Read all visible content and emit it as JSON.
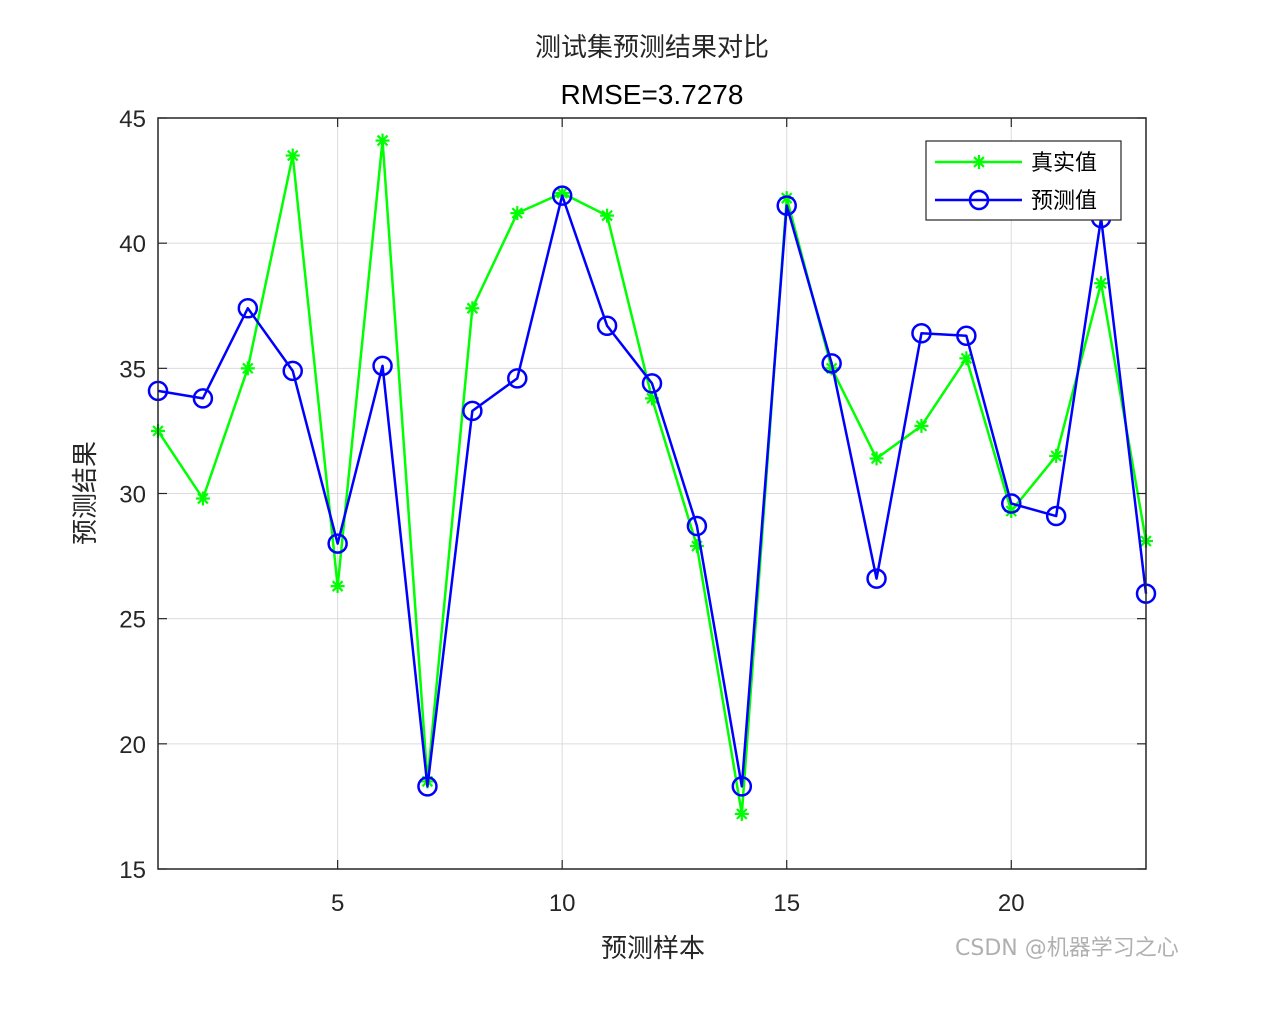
{
  "chart_data": {
    "type": "line",
    "title": "测试集预测结果对比",
    "subtitle": "RMSE=3.7278",
    "xlabel": "预测样本",
    "ylabel": "预测结果",
    "xlim": [
      1,
      23
    ],
    "ylim": [
      15,
      45
    ],
    "xticks": [
      5,
      10,
      15,
      20
    ],
    "yticks": [
      15,
      20,
      25,
      30,
      35,
      40,
      45
    ],
    "grid": true,
    "legend_position": "top-right",
    "x": [
      1,
      2,
      3,
      4,
      5,
      6,
      7,
      8,
      9,
      10,
      11,
      12,
      13,
      14,
      15,
      16,
      17,
      18,
      19,
      20,
      21,
      22,
      23
    ],
    "series": [
      {
        "name": "真实值",
        "color": "#00ff00",
        "marker": "asterisk",
        "values": [
          32.5,
          29.8,
          35.0,
          43.5,
          26.3,
          44.1,
          18.5,
          37.4,
          41.2,
          42.0,
          41.1,
          33.8,
          27.9,
          17.2,
          41.8,
          35.0,
          31.4,
          32.7,
          35.4,
          29.3,
          31.5,
          38.4,
          28.1
        ]
      },
      {
        "name": "预测值",
        "color": "#0000ff",
        "marker": "circle",
        "values": [
          34.1,
          33.8,
          37.4,
          34.9,
          28.0,
          35.1,
          18.3,
          33.3,
          34.6,
          41.9,
          36.7,
          34.4,
          28.7,
          18.3,
          41.5,
          35.2,
          26.6,
          36.4,
          36.3,
          29.6,
          29.1,
          41.0,
          26.0
        ]
      }
    ]
  },
  "watermark": "CSDN @机器学习之心"
}
